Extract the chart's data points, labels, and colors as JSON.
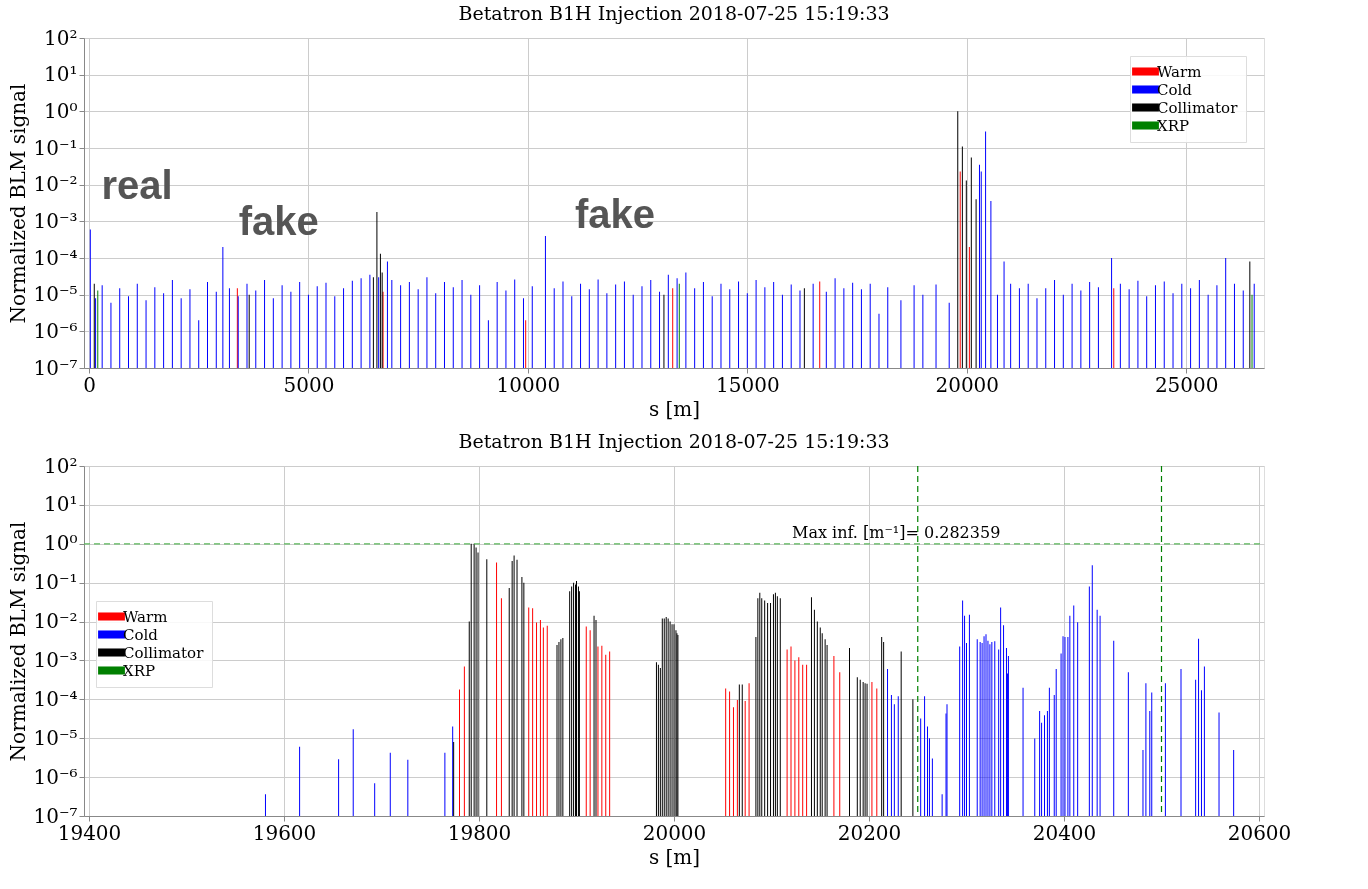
{
  "chart_data": [
    {
      "type": "bar",
      "title": "Betatron B1H Injection  2018-07-25 15:19:33",
      "xlabel": "s [m]",
      "ylabel": "Normalized BLM signal",
      "xlim": [
        0,
        26659
      ],
      "xticks": [
        0,
        5000,
        10000,
        15000,
        20000,
        25000
      ],
      "ylim": [
        1e-07,
        100
      ],
      "log": true,
      "grid": true,
      "legend": "top right",
      "yticks": [
        {
          "value": 1e-07,
          "label": "10⁻⁷"
        },
        {
          "value": 1e-06,
          "label": "10⁻⁶"
        },
        {
          "value": 1e-05,
          "label": "10⁻⁵"
        },
        {
          "value": 0.0001,
          "label": "10⁻⁴"
        },
        {
          "value": 0.001,
          "label": "10⁻³"
        },
        {
          "value": 0.01,
          "label": "10⁻²"
        },
        {
          "value": 0.1,
          "label": "10⁻¹"
        },
        {
          "value": 1,
          "label": "10⁰"
        },
        {
          "value": 10,
          "label": "10¹"
        },
        {
          "value": 100,
          "label": "10²"
        }
      ],
      "annotations": [
        "real",
        "fake",
        "fake"
      ],
      "series": [
        {
          "name": "Warm",
          "color": "#ff0000",
          "x": [
            3380,
            6700,
            9950,
            13300,
            16650,
            19851,
            20060,
            23350
          ],
          "values": [
            1.5e-05,
            1.2e-05,
            2e-06,
            1.5e-05,
            2.3e-05,
            0.023,
            0.0002,
            1.5e-05
          ]
        },
        {
          "name": "Cold",
          "color": "#0000ff",
          "x": [
            30,
            150,
            300,
            500,
            700,
            900,
            1100,
            1300,
            1500,
            1700,
            1900,
            2100,
            2300,
            2500,
            2700,
            2900,
            3050,
            3200,
            3400,
            3600,
            3800,
            4000,
            4200,
            4400,
            4600,
            4800,
            5000,
            5200,
            5400,
            5600,
            5800,
            6000,
            6200,
            6400,
            6600,
            6800,
            6900,
            7100,
            7300,
            7500,
            7700,
            7900,
            8100,
            8300,
            8500,
            8700,
            8900,
            9100,
            9300,
            9500,
            9700,
            9900,
            10100,
            10400,
            10600,
            10800,
            11000,
            11200,
            11400,
            11600,
            11800,
            12000,
            12200,
            12400,
            12600,
            12800,
            13000,
            13200,
            13400,
            13600,
            13800,
            14000,
            14200,
            14400,
            14600,
            14800,
            15000,
            15200,
            15400,
            15600,
            15800,
            16000,
            16200,
            16500,
            16800,
            17000,
            17200,
            17400,
            17600,
            17800,
            18000,
            18200,
            18500,
            18800,
            19000,
            19300,
            19600,
            20290,
            20330,
            20429,
            20550,
            20700,
            20850,
            21000,
            21200,
            21400,
            21600,
            21800,
            22000,
            22200,
            22400,
            22600,
            22800,
            23000,
            23300,
            23500,
            23700,
            23900,
            24100,
            24300,
            24500,
            24700,
            24900,
            25100,
            25300,
            25500,
            25700,
            25900,
            26100,
            26300,
            26550
          ],
          "values": [
            0.0006,
            8e-06,
            1.8e-05,
            6e-06,
            1.5e-05,
            9e-06,
            2e-05,
            7e-06,
            1.6e-05,
            1.1e-05,
            2.5e-05,
            8e-06,
            1.4e-05,
            2e-06,
            2.2e-05,
            1.2e-05,
            0.0002,
            1.5e-05,
            9e-06,
            2e-05,
            1.3e-05,
            2.5e-05,
            8e-06,
            1.8e-05,
            1.2e-05,
            2.2e-05,
            1e-05,
            1.7e-05,
            2.1e-05,
            9e-06,
            1.5e-05,
            2.4e-05,
            2.8e-05,
            3.5e-05,
            3e-05,
            8e-05,
            2.5e-05,
            1.8e-05,
            2.2e-05,
            1.4e-05,
            3e-05,
            1.1e-05,
            2.2e-05,
            1.6e-05,
            2.5e-05,
            1e-05,
            1.8e-05,
            2e-06,
            2.2e-05,
            1.3e-05,
            2.6e-05,
            8e-06,
            1.7e-05,
            0.0004,
            1.5e-05,
            2.3e-05,
            9e-06,
            2e-05,
            1.4e-05,
            2.6e-05,
            1.1e-05,
            1.9e-05,
            2.3e-05,
            1e-05,
            1.7e-05,
            2.5e-05,
            1.2e-05,
            3.5e-05,
            2.8e-05,
            4e-05,
            1.5e-05,
            2.2e-05,
            9e-06,
            2e-05,
            1.4e-05,
            2.3e-05,
            1.1e-05,
            2.5e-05,
            1.6e-05,
            2.2e-05,
            1e-05,
            1.9e-05,
            1.3e-05,
            2e-05,
            1.2e-05,
            2.8e-05,
            1.5e-05,
            2.1e-05,
            1.4e-05,
            2e-05,
            3e-06,
            1.6e-05,
            7e-06,
            1.8e-05,
            1e-05,
            1.9e-05,
            6e-06,
            0.035,
            0.023,
            0.28,
            0.0036,
            1e-05,
            8e-05,
            2e-05,
            1.5e-05,
            2e-05,
            8e-06,
            1.5e-05,
            2.5e-05,
            1e-05,
            2e-05,
            1.3e-05,
            2.2e-05,
            1.6e-05,
            0.0001,
            2e-05,
            1.4e-05,
            2.4e-05,
            9e-06,
            1.8e-05,
            2.3e-05,
            1.1e-05,
            2e-05,
            1.5e-05,
            2.5e-05,
            1e-05,
            1.8e-05,
            0.0001,
            2e-05,
            1.3e-05,
            2e-05
          ]
        },
        {
          "name": "Collimator",
          "color": "#000000",
          "x": [
            120,
            3650,
            6480,
            6560,
            6640,
            6680,
            13100,
            16300,
            19795,
            19900,
            19990,
            20104,
            20213,
            26450
          ],
          "values": [
            2e-05,
            1e-05,
            3e-05,
            0.0018,
            0.00013,
            4e-05,
            1e-05,
            1.5e-05,
            1.0,
            0.11,
            0.013,
            0.055,
            0.004,
            8e-05
          ]
        },
        {
          "name": "XRP",
          "color": "#008000",
          "x": [
            200,
            13450,
            26500
          ],
          "values": [
            1.3e-05,
            2e-05,
            1e-05
          ]
        }
      ]
    },
    {
      "type": "bar",
      "title": "Betatron B1H Injection  2018-07-25 15:19:33",
      "xlabel": "s [m]",
      "ylabel": "Normalized BLM signal",
      "xlim": [
        19400,
        20600
      ],
      "xticks": [
        19400,
        19600,
        19800,
        20000,
        20200,
        20400,
        20600
      ],
      "ylim": [
        1e-07,
        100
      ],
      "log": true,
      "grid": true,
      "legend": "left",
      "yticks": [
        {
          "value": 1e-07,
          "label": "10⁻⁷"
        },
        {
          "value": 1e-06,
          "label": "10⁻⁶"
        },
        {
          "value": 1e-05,
          "label": "10⁻⁵"
        },
        {
          "value": 0.0001,
          "label": "10⁻⁴"
        },
        {
          "value": 0.001,
          "label": "10⁻³"
        },
        {
          "value": 0.01,
          "label": "10⁻²"
        },
        {
          "value": 0.1,
          "label": "10⁻¹"
        },
        {
          "value": 1,
          "label": "10⁰"
        },
        {
          "value": 10,
          "label": "10¹"
        },
        {
          "value": 100,
          "label": "10²"
        }
      ],
      "annotations": [
        "Max inf. [m⁻¹]= 0.282359"
      ],
      "ref_lines": [
        {
          "axis": "y",
          "value": 1,
          "color": "#5cb85c",
          "line_style": "dashed"
        },
        {
          "axis": "x",
          "value": 20250,
          "color": "#008000",
          "line_style": "dashed"
        },
        {
          "axis": "x",
          "value": 20500,
          "color": "#008000",
          "line_style": "dashed"
        }
      ],
      "series": [
        {
          "name": "Warm",
          "color": "#ff0000",
          "x": [
            19780,
            19785,
            19818,
            19823,
            19851,
            19855,
            19859,
            19863,
            19866,
            19870,
            19910,
            19914,
            19922,
            19926,
            19930,
            19934,
            20053,
            20057,
            20061,
            20065,
            20073,
            20077,
            20116,
            20120,
            20124,
            20128,
            20132,
            20136,
            20164,
            20170,
            20203,
            20208
          ],
          "values": [
            0.00018,
            0.0007,
            0.33,
            0.04,
            0.023,
            0.022,
            0.0095,
            0.011,
            0.007,
            0.0078,
            0.0075,
            0.006,
            0.0023,
            0.0024,
            0.0014,
            0.0017,
            0.00019,
            0.00016,
            6.3e-05,
            9.6e-05,
            9e-05,
            0.00026,
            0.0019,
            0.0023,
            0.001,
            0.0012,
            0.00077,
            0.00077,
            0.0013,
            0.0005,
            0.00028,
            0.00019
          ]
        },
        {
          "name": "Cold",
          "color": "#0000ff",
          "x": [
            19581,
            19616,
            19656,
            19671,
            19693,
            19709,
            19727,
            19765,
            19773,
            20219,
            20223,
            20226,
            20230,
            20253,
            20257,
            20260,
            20262,
            20265,
            20275,
            20279,
            20280,
            20293,
            20296,
            20298,
            20300,
            20303,
            20311,
            20314,
            20316,
            20318,
            20320,
            20322,
            20324,
            20326,
            20329,
            20333,
            20335,
            20338,
            20341,
            20342,
            20343,
            20358,
            20370,
            20375,
            20377,
            20380,
            20383,
            20385,
            20390,
            20392,
            20397,
            20399,
            20401,
            20404,
            20406,
            20410,
            20414,
            20426,
            20429,
            20434,
            20437,
            20451,
            20466,
            20481,
            20484,
            20488,
            20490,
            20504,
            20520,
            20535,
            20538,
            20541,
            20544,
            20559,
            20574
          ],
          "values": [
            3.6e-07,
            6e-06,
            2.9e-06,
            1.7e-05,
            7e-07,
            4.2e-06,
            2.8e-06,
            4.2e-06,
            2e-05,
            0.0006,
            0.00013,
            7.5e-05,
            0.00012,
            3.2e-05,
            0.00012,
            2e-05,
            1e-05,
            3e-06,
            3.6e-07,
            4.3e-05,
            7.5e-05,
            0.0023,
            0.035,
            0.014,
            0.0028,
            0.015,
            0.0035,
            0.003,
            0.0028,
            0.0042,
            0.0047,
            0.0032,
            0.0026,
            0.003,
            0.0031,
            0.0019,
            0.023,
            0.008,
            0.0021,
            0.00046,
            0.0013,
            0.0002,
            9.9e-06,
            5e-05,
            2.5e-05,
            3.9e-05,
            5e-05,
            0.0002,
            0.00013,
            0.0006,
            0.0015,
            0.0042,
            0.004,
            0.004,
            0.014,
            0.026,
            0.0096,
            0.08,
            0.28,
            0.02,
            0.014,
            0.0032,
            0.0005,
            5e-06,
            0.00026,
            5e-05,
            0.00015,
            0.00026,
            0.0006,
            0.00032,
            0.0036,
            0.00017,
            0.0007,
            4.6e-05,
            5e-06
          ]
        },
        {
          "name": "Collimator",
          "color": "#000000",
          "x": [
            19774,
            19790,
            19792,
            19795,
            19797,
            19799,
            19808,
            19831,
            19834,
            19836,
            19839,
            19844,
            19846,
            19880,
            19882,
            19884,
            19886,
            19893,
            19895,
            19897,
            19899,
            19900,
            19902,
            19903,
            19918,
            19920,
            19982,
            19984,
            19986,
            19988,
            19990,
            19992,
            19994,
            19996,
            19998,
            20000,
            20002,
            20003,
            20004,
            20067,
            20070,
            20084,
            20086,
            20088,
            20090,
            20093,
            20096,
            20099,
            20102,
            20104,
            20106,
            20109,
            20141,
            20144,
            20147,
            20150,
            20152,
            20155,
            20157,
            20180,
            20188,
            20191,
            20194,
            20196,
            20198,
            20213,
            20215,
            20233,
            20245
          ],
          "values": [
            8e-06,
            0.01,
            1.0,
            1.0,
            0.8,
            0.6,
            0.4,
            0.073,
            0.36,
            0.5,
            0.39,
            0.14,
            0.1,
            0.0025,
            0.003,
            0.0035,
            0.0038,
            0.06,
            0.08,
            0.1,
            0.09,
            0.11,
            0.08,
            0.06,
            0.014,
            0.011,
            0.0009,
            0.00077,
            0.00064,
            0.012,
            0.012,
            0.013,
            0.012,
            0.01,
            0.0085,
            0.0085,
            0.006,
            0.005,
            0.0045,
            0.00024,
            0.00024,
            0.004,
            0.04,
            0.055,
            0.04,
            0.035,
            0.03,
            0.03,
            0.05,
            0.055,
            0.045,
            0.04,
            0.042,
            0.02,
            0.01,
            0.007,
            0.005,
            0.0035,
            0.0025,
            0.0021,
            0.00037,
            0.00032,
            0.00028,
            0.00026,
            0.00025,
            0.004,
            0.003,
            0.0017,
            0.0001
          ]
        },
        {
          "name": "XRP",
          "color": "#008000"
        }
      ]
    }
  ]
}
